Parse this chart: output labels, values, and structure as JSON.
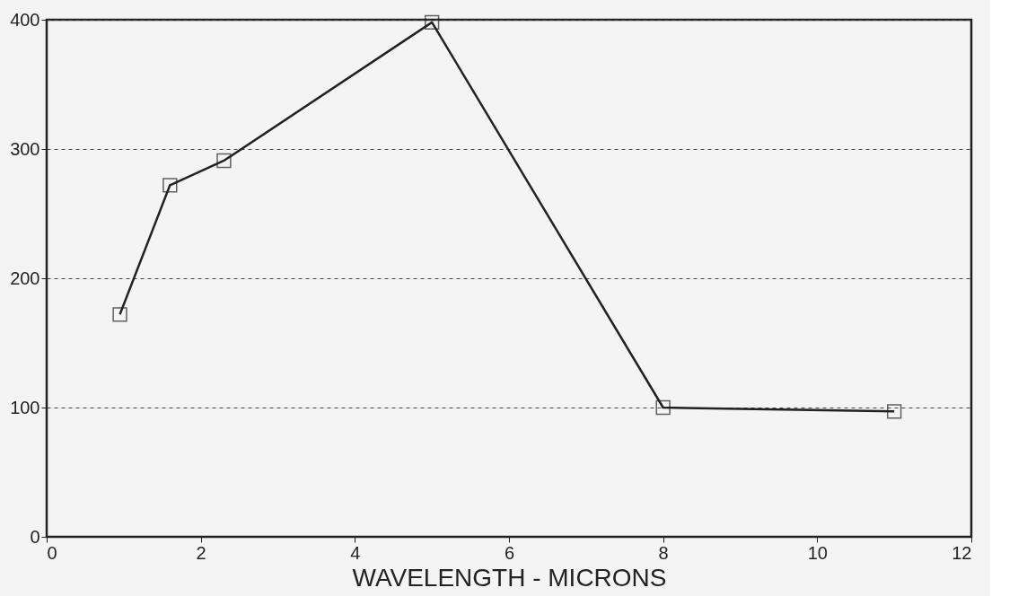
{
  "chart_data": {
    "type": "line",
    "xlabel": "WAVELENGTH - MICRONS",
    "x": [
      0.95,
      1.6,
      2.3,
      5,
      8,
      11
    ],
    "series": [
      {
        "color": "#222222",
        "values": [
          172,
          272,
          291,
          398,
          100,
          97
        ]
      }
    ],
    "xlim": [
      0,
      12
    ],
    "xticks": [
      0,
      2,
      4,
      6,
      8,
      10,
      12
    ],
    "ylim": [
      0,
      400
    ],
    "yticks": [
      0,
      100,
      200,
      300,
      400
    ],
    "grid": "y",
    "marker": "square",
    "line_style": "solid"
  }
}
